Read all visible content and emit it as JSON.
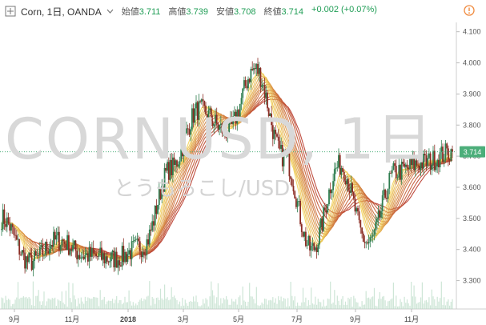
{
  "header": {
    "symbol_title": "Corn, 1日, OANDA",
    "open_label": "始値",
    "open_value": "3.711",
    "high_label": "高値",
    "high_value": "3.739",
    "low_label": "安値",
    "low_value": "3.708",
    "close_label": "終値",
    "close_value": "3.714",
    "change_value": "+0.002 (+0.07%)"
  },
  "watermark": {
    "symbol_line": "CORNUSD, 1日",
    "description": "とうもろこし/USD"
  },
  "price_label": "3.714",
  "icons": {
    "expand": "expand-square-icon",
    "dropdown": "chevron-down-icon",
    "alert": "alert-circle-icon"
  },
  "colors": {
    "up": "#2e7d4f",
    "down": "#8b2c23",
    "current_price": "#4cae7a",
    "ribbon_fast": "#f2d35a",
    "ribbon_slow": "#b83a2b"
  },
  "chart_data": {
    "type": "candlestick",
    "y_ticks": [
      "4.100",
      "4.000",
      "3.900",
      "3.800",
      "3.700",
      "3.600",
      "3.500",
      "3.400",
      "3.300"
    ],
    "x_ticks": [
      "9月",
      "11月",
      "2018",
      "3月",
      "5月",
      "7月",
      "9月",
      "11月"
    ],
    "ylim": [
      3.25,
      4.13
    ],
    "last_close": 3.714,
    "key_closes": [
      {
        "date": "2017-08",
        "close": 3.5
      },
      {
        "date": "2017-09",
        "close": 3.36
      },
      {
        "date": "2017-10",
        "close": 3.43
      },
      {
        "date": "2017-11",
        "close": 3.38
      },
      {
        "date": "2017-12",
        "close": 3.37
      },
      {
        "date": "2018-01",
        "close": 3.41
      },
      {
        "date": "2018-02",
        "close": 3.66
      },
      {
        "date": "2018-03",
        "close": 3.85
      },
      {
        "date": "2018-04",
        "close": 3.78
      },
      {
        "date": "2018-05",
        "close": 3.98
      },
      {
        "date": "2018-06",
        "close": 3.7
      },
      {
        "date": "2018-07",
        "close": 3.4
      },
      {
        "date": "2018-08",
        "close": 3.67
      },
      {
        "date": "2018-09",
        "close": 3.42
      },
      {
        "date": "2018-10",
        "close": 3.65
      },
      {
        "date": "2018-11",
        "close": 3.68
      },
      {
        "date": "2018-12",
        "close": 3.714
      }
    ],
    "indicator": "moving-average ribbon",
    "volume": true
  }
}
